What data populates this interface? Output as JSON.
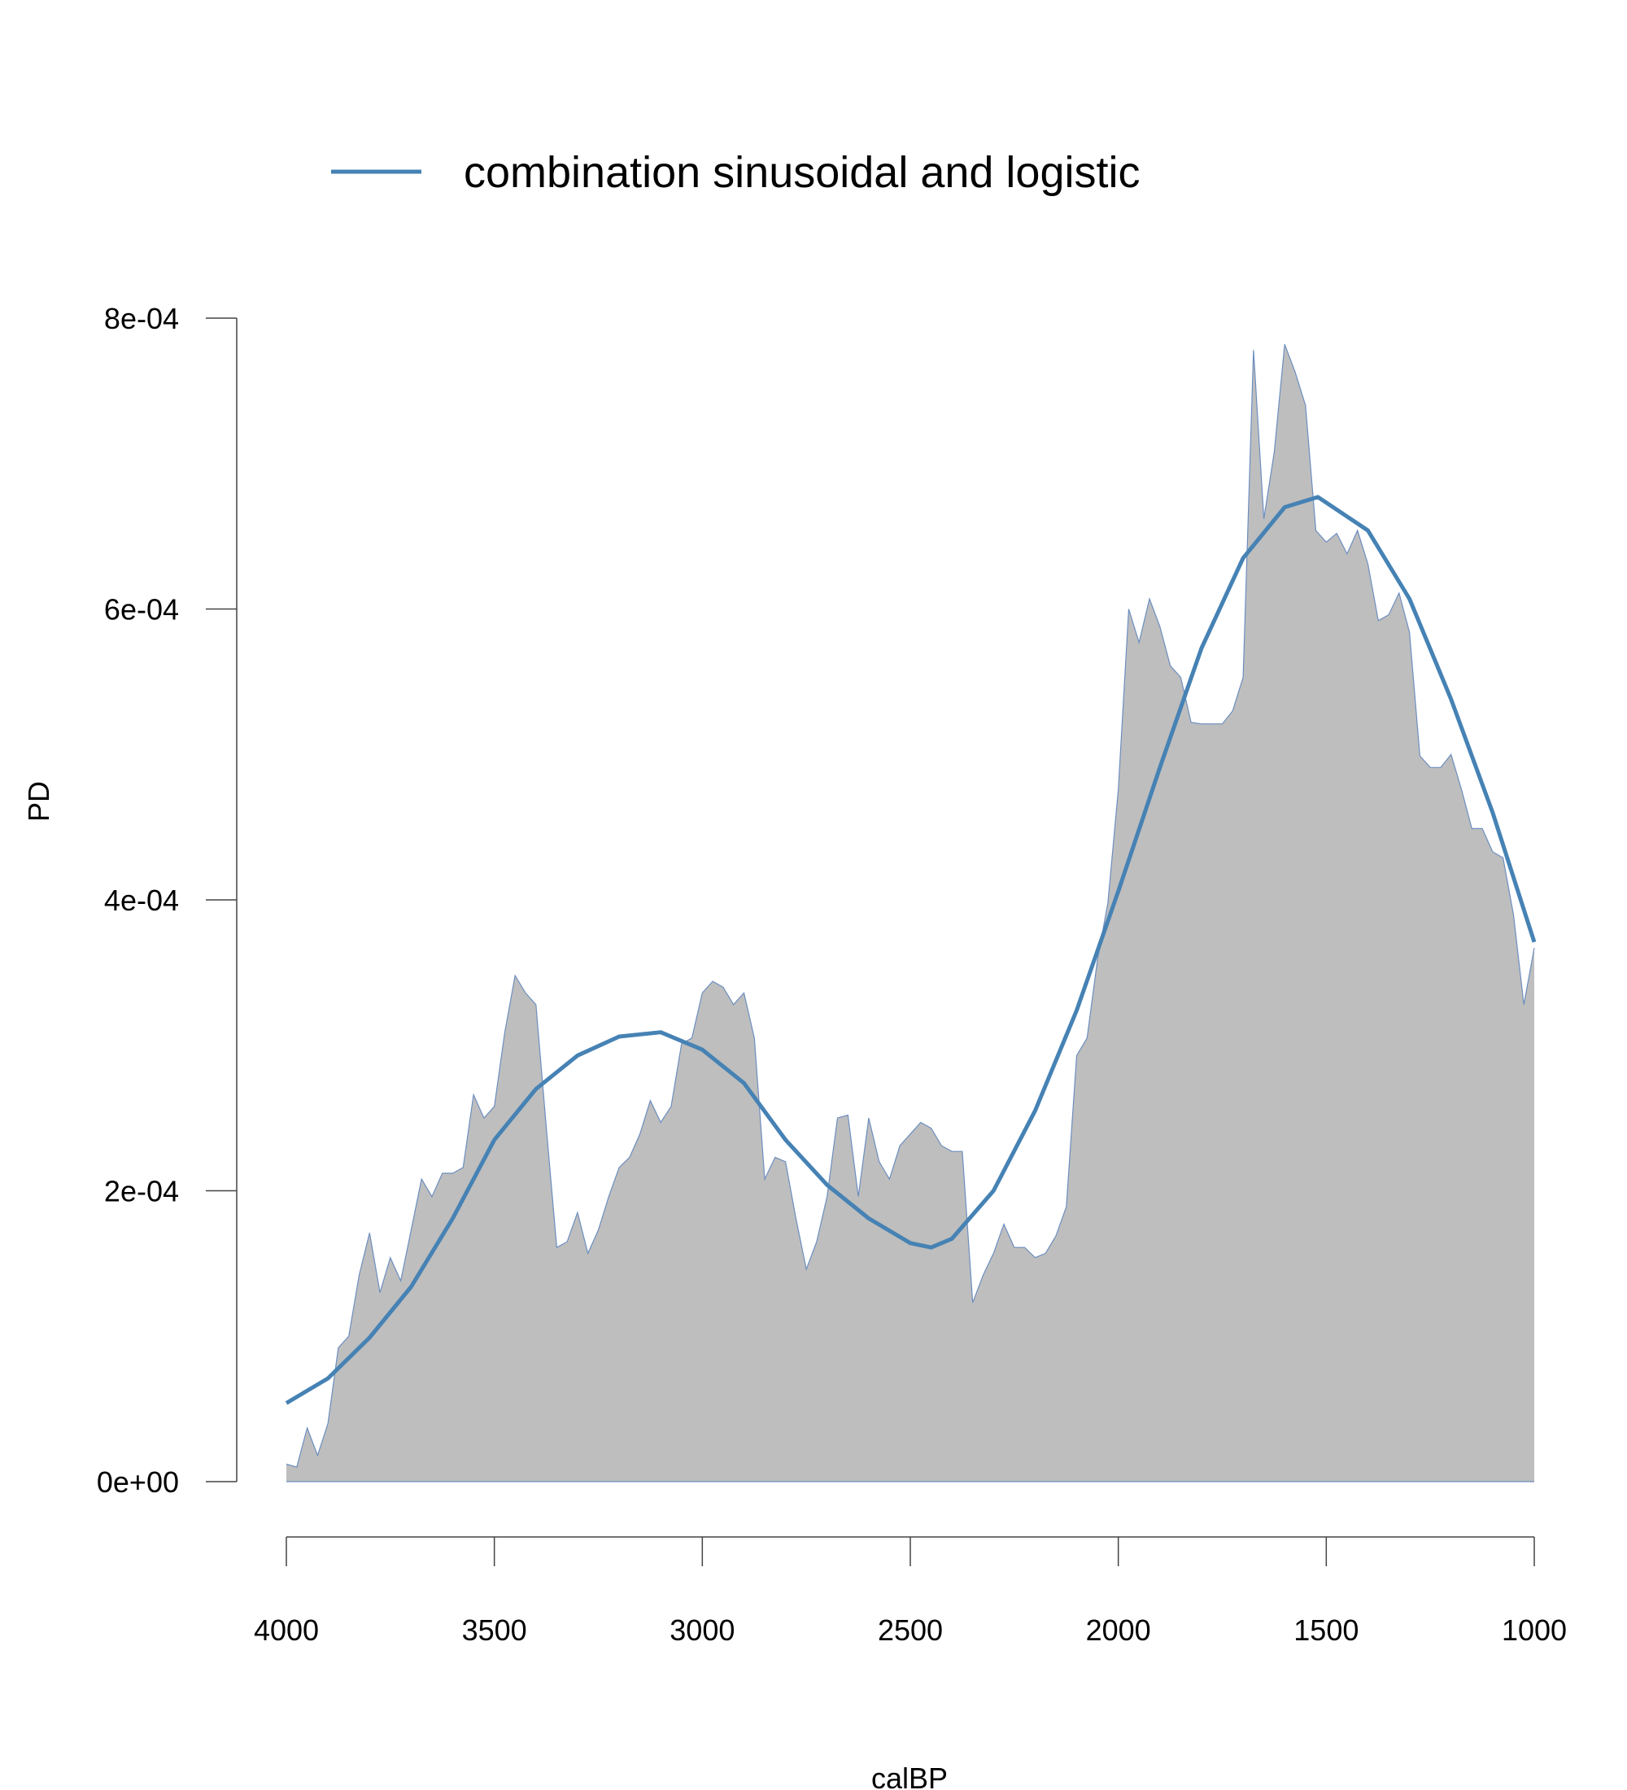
{
  "chart_data": {
    "type": "area",
    "x_label": "calBP",
    "y_label": "PD",
    "xlim": [
      4000,
      1000
    ],
    "xticks": [
      4000,
      3500,
      3000,
      2500,
      2000,
      1500,
      1000
    ],
    "ylim": [
      0,
      0.0008
    ],
    "yticks": [
      {
        "value": 0,
        "label": "0e+00"
      },
      {
        "value": 0.0002,
        "label": "2e-04"
      },
      {
        "value": 0.0004,
        "label": "4e-04"
      },
      {
        "value": 0.0006,
        "label": "6e-04"
      },
      {
        "value": 0.0008,
        "label": "8e-04"
      }
    ],
    "spd": {
      "color": "#bebebe",
      "edge_color": "#6c8ebf",
      "x": [
        4000,
        3975,
        3950,
        3925,
        3900,
        3875,
        3850,
        3825,
        3800,
        3775,
        3750,
        3725,
        3700,
        3675,
        3650,
        3625,
        3600,
        3575,
        3550,
        3525,
        3500,
        3475,
        3450,
        3425,
        3400,
        3375,
        3350,
        3325,
        3300,
        3275,
        3250,
        3225,
        3200,
        3175,
        3150,
        3125,
        3100,
        3075,
        3050,
        3025,
        3000,
        2975,
        2950,
        2925,
        2900,
        2875,
        2850,
        2825,
        2800,
        2775,
        2750,
        2725,
        2700,
        2675,
        2650,
        2625,
        2600,
        2575,
        2550,
        2525,
        2500,
        2475,
        2450,
        2425,
        2400,
        2375,
        2350,
        2325,
        2300,
        2275,
        2250,
        2225,
        2200,
        2175,
        2150,
        2125,
        2100,
        2075,
        2050,
        2025,
        2000,
        1975,
        1950,
        1925,
        1900,
        1875,
        1850,
        1825,
        1800,
        1775,
        1750,
        1725,
        1700,
        1675,
        1650,
        1625,
        1600,
        1575,
        1550,
        1525,
        1500,
        1475,
        1450,
        1425,
        1400,
        1375,
        1350,
        1325,
        1300,
        1275,
        1250,
        1225,
        1200,
        1175,
        1150,
        1125,
        1100,
        1075,
        1050,
        1025,
        1000
      ],
      "values": [
        1.2e-05,
        1e-05,
        3.7e-05,
        1.8e-05,
        4e-05,
        9.2e-05,
        0.0001,
        0.000142,
        0.000171,
        0.00013,
        0.000154,
        0.000138,
        0.000173,
        0.000208,
        0.000196,
        0.000212,
        0.000212,
        0.000216,
        0.000266,
        0.00025,
        0.000258,
        0.000309,
        0.000348,
        0.000336,
        0.000328,
        0.000243,
        0.000161,
        0.000165,
        0.000185,
        0.000157,
        0.000173,
        0.000196,
        0.000216,
        0.000223,
        0.000239,
        0.000262,
        0.000247,
        0.000258,
        0.000301,
        0.000305,
        0.000336,
        0.000344,
        0.00034,
        0.000328,
        0.000336,
        0.000305,
        0.000208,
        0.000223,
        0.00022,
        0.000181,
        0.000146,
        0.000165,
        0.000196,
        0.00025,
        0.000252,
        0.000196,
        0.00025,
        0.00022,
        0.000208,
        0.000231,
        0.000239,
        0.000247,
        0.000243,
        0.000231,
        0.000227,
        0.000227,
        0.000123,
        0.000142,
        0.000157,
        0.000177,
        0.000161,
        0.000161,
        0.000154,
        0.000157,
        0.000169,
        0.000189,
        0.000293,
        0.000305,
        0.000359,
        0.000398,
        0.000476,
        0.0006,
        0.000577,
        0.000607,
        0.000588,
        0.000561,
        0.000553,
        0.000522,
        0.000521,
        0.000521,
        0.000521,
        0.00053,
        0.000553,
        0.000778,
        0.000662,
        0.000708,
        0.000782,
        0.000763,
        0.00074,
        0.000654,
        0.000646,
        0.000652,
        0.000638,
        0.000654,
        0.000631,
        0.000592,
        0.000596,
        0.000611,
        0.000584,
        0.000499,
        0.000491,
        0.000491,
        0.0005,
        0.000476,
        0.000449,
        0.000449,
        0.000433,
        0.000429,
        0.00039,
        0.000328,
        0.000367
      ]
    },
    "series": [
      {
        "name": "combination sinusoidal and logistic",
        "color": "#4682b4",
        "x": [
          4000,
          3900,
          3800,
          3700,
          3600,
          3500,
          3400,
          3300,
          3200,
          3100,
          3000,
          2900,
          2800,
          2700,
          2600,
          2500,
          2450,
          2400,
          2300,
          2200,
          2100,
          2000,
          1900,
          1800,
          1700,
          1600,
          1520,
          1400,
          1300,
          1200,
          1100,
          1000
        ],
        "values": [
          5.4e-05,
          7.1e-05,
          9.9e-05,
          0.000134,
          0.000181,
          0.000235,
          0.00027,
          0.000293,
          0.000306,
          0.000309,
          0.000297,
          0.000274,
          0.000235,
          0.000204,
          0.000181,
          0.000164,
          0.000161,
          0.000167,
          0.0002,
          0.000255,
          0.000324,
          0.000406,
          0.000491,
          0.000573,
          0.000635,
          0.00067,
          0.000677,
          0.000654,
          0.000607,
          0.000538,
          0.00046,
          0.000371
        ]
      }
    ]
  }
}
